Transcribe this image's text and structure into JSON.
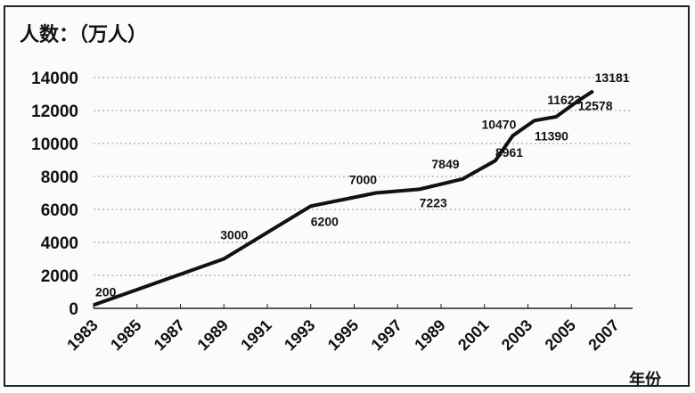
{
  "chart_data": {
    "type": "line",
    "ylabel": "人数：（万人）",
    "xlabel": "年份",
    "ylim": [
      0,
      14000
    ],
    "yticks": [
      0,
      2000,
      4000,
      6000,
      8000,
      10000,
      12000,
      14000
    ],
    "xlim": [
      1983,
      2007
    ],
    "xtick_labels": [
      "1983",
      "1985",
      "1987",
      "1989",
      "1991",
      "1993",
      "1995",
      "1997",
      "1989",
      "2001",
      "2003",
      "2005",
      "2007"
    ],
    "grid": "horizontal-dotted",
    "series": [
      {
        "name": "人数",
        "points": [
          {
            "x": 1983,
            "y": 200,
            "label": "200"
          },
          {
            "x": 1989,
            "y": 3000,
            "label": "3000"
          },
          {
            "x": 1993,
            "y": 6200,
            "label": "6200"
          },
          {
            "x": 1996,
            "y": 7000,
            "label": "7000"
          },
          {
            "x": 1998,
            "y": 7223,
            "label": "7223"
          },
          {
            "x": 2000,
            "y": 7849,
            "label": "7849"
          },
          {
            "x": 2001.5,
            "y": 8961,
            "label": "8961"
          },
          {
            "x": 2002.3,
            "y": 10470,
            "label": "10470"
          },
          {
            "x": 2003.3,
            "y": 11390,
            "label": "11390"
          },
          {
            "x": 2004.3,
            "y": 11623,
            "label": "11623"
          },
          {
            "x": 2005.3,
            "y": 12578,
            "label": "12578"
          },
          {
            "x": 2006,
            "y": 13181,
            "label": "13181"
          }
        ]
      }
    ]
  }
}
